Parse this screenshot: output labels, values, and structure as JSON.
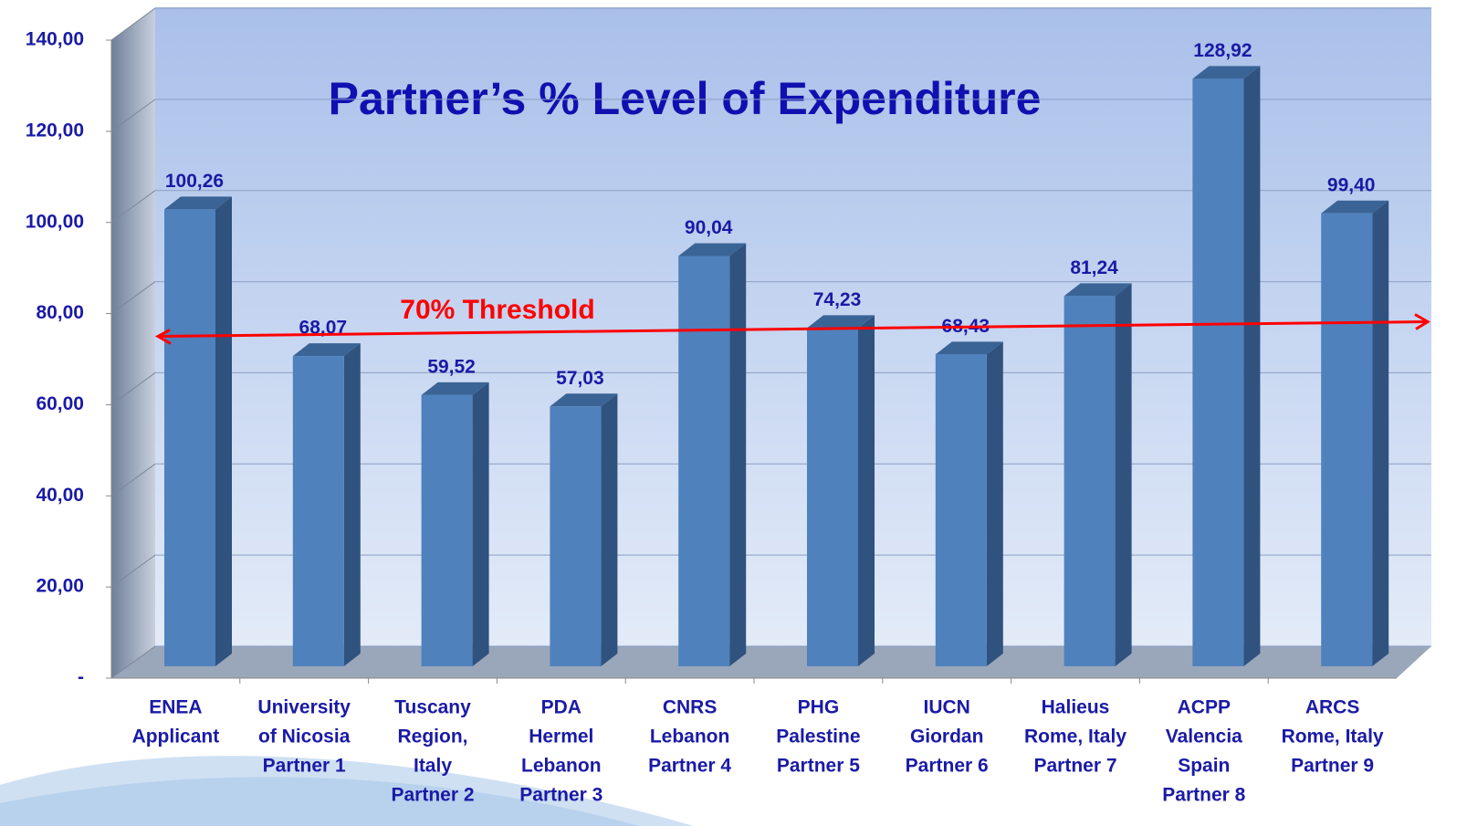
{
  "chart_data": {
    "type": "bar",
    "title": "Partner’s % Level of Expenditure",
    "categories": [
      [
        "ENEA",
        "Applicant"
      ],
      [
        "University",
        "of Nicosia",
        "Partner 1"
      ],
      [
        "Tuscany",
        "Region,",
        "Italy",
        "Partner 2"
      ],
      [
        "PDA",
        "Hermel",
        "Lebanon",
        "Partner 3"
      ],
      [
        "CNRS",
        "Lebanon",
        "Partner 4"
      ],
      [
        "PHG",
        "Palestine",
        "Partner 5"
      ],
      [
        "IUCN",
        "Giordan",
        "Partner 6"
      ],
      [
        "Halieus",
        "Rome, Italy",
        "Partner 7"
      ],
      [
        "ACPP",
        "Valencia",
        "Spain",
        "Partner 8"
      ],
      [
        "ARCS",
        "Rome, Italy",
        "Partner 9"
      ]
    ],
    "values": [
      100.26,
      68.07,
      59.52,
      57.03,
      90.04,
      74.23,
      68.43,
      81.24,
      128.92,
      99.4
    ],
    "value_labels": [
      "100,26",
      "68,07",
      "59,52",
      "57,03",
      "90,04",
      "74,23",
      "68,43",
      "81,24",
      "128,92",
      "99,40"
    ],
    "color": "#4f81bd",
    "ylim": [
      0,
      140
    ],
    "yticks": [
      {
        "value": 0,
        "label": "-"
      },
      {
        "value": 20,
        "label": "20,00"
      },
      {
        "value": 40,
        "label": "40,00"
      },
      {
        "value": 60,
        "label": "60,00"
      },
      {
        "value": 80,
        "label": "80,00"
      },
      {
        "value": 100,
        "label": "100,00"
      },
      {
        "value": 120,
        "label": "120,00"
      },
      {
        "value": 140,
        "label": "140,00"
      }
    ],
    "grid": true,
    "threshold": {
      "value": 70,
      "label": "70% Threshold",
      "color": "#ff0000"
    }
  }
}
